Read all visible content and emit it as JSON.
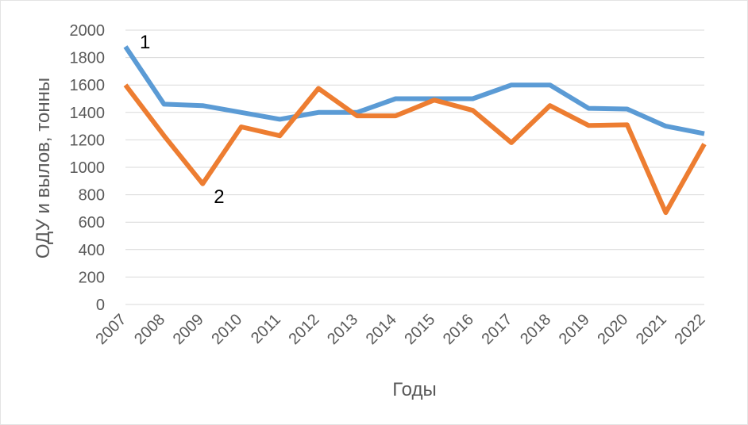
{
  "chart_data": {
    "type": "line",
    "title": "",
    "xlabel": "Годы",
    "ylabel": "ОДУ и вылов, тонны",
    "ylim": [
      0,
      2000
    ],
    "yticks": [
      "0",
      "200",
      "400",
      "600",
      "800",
      "1000",
      "1200",
      "1400",
      "1600",
      "1800",
      "2000"
    ],
    "categories": [
      "2007",
      "2008",
      "2009",
      "2010",
      "2011",
      "2012",
      "2013",
      "2014",
      "2015",
      "2016",
      "2017",
      "2018",
      "2019",
      "2020",
      "2021",
      "2022"
    ],
    "grid": true,
    "legend": "none",
    "series": [
      {
        "name": "1",
        "color": "#5b9bd5",
        "values": [
          1880,
          1460,
          1450,
          1400,
          1350,
          1400,
          1400,
          1500,
          1500,
          1500,
          1600,
          1600,
          1430,
          1425,
          1300,
          1245
        ]
      },
      {
        "name": "2",
        "color": "#ed7d31",
        "values": [
          1600,
          1230,
          880,
          1295,
          1230,
          1575,
          1375,
          1375,
          1490,
          1415,
          1180,
          1450,
          1305,
          1310,
          670,
          1170
        ]
      }
    ]
  }
}
